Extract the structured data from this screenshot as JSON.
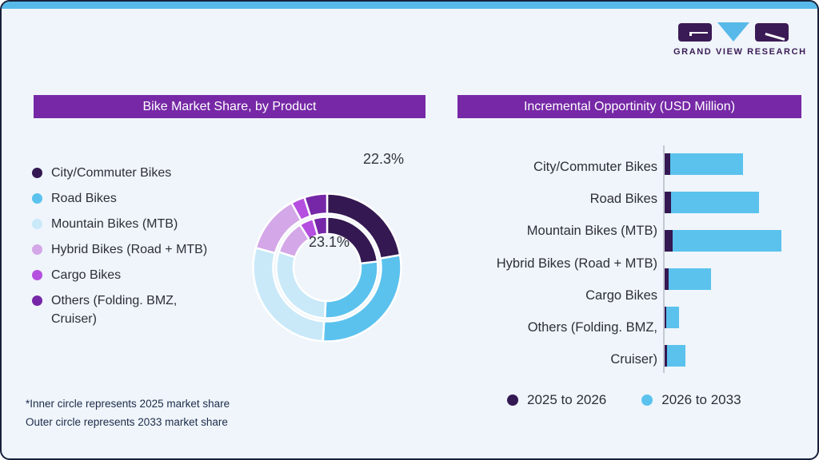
{
  "brand": {
    "wordmark": "GRAND VIEW RESEARCH"
  },
  "colors": {
    "accent_strip": "#57b9e9",
    "header_bar": "#7628a6",
    "card_bg": "#eff5fa",
    "card_border": "#17203a",
    "dark_purple": "#331852",
    "road_blue": "#5bc2ee",
    "light_blue": "#c9e9f9",
    "lavender": "#d4a7e8",
    "magenta": "#b44fe0",
    "others_purple": "#7627a8",
    "text": "#2e2e38",
    "footnote_text": "#1c2b4a",
    "axis_line": "#c3c8d2"
  },
  "left_panel": {
    "header": "Bike Market Share, by Product",
    "callout_outer": "22.3%",
    "callout_inner": "23.1%",
    "footnote1": "*Inner circle represents 2025 market share",
    "footnote2": "Outer circle represents 2033 market share"
  },
  "right_panel": {
    "header": "Incremental Opportinity (USD Million)",
    "legend": [
      {
        "label": "2025 to 2026",
        "color": "#331852"
      },
      {
        "label": "2026 to 2033",
        "color": "#5bc2ee"
      }
    ]
  },
  "chart_data": [
    {
      "type": "pie",
      "subtype": "double-ring donut",
      "title": "Bike Market Share, by Product",
      "categories": [
        "City/Commuter Bikes",
        "Road Bikes",
        "Mountain Bikes (MTB)",
        "Hybrid Bikes (Road + MTB)",
        "Cargo Bikes",
        "Others (Folding. BMZ, Cruiser)"
      ],
      "colors": [
        "#331852",
        "#5bc2ee",
        "#c9e9f9",
        "#d4a7e8",
        "#b44fe0",
        "#7627a8"
      ],
      "series": [
        {
          "name": "2025 market share (inner circle)",
          "values": [
            23.1,
            27.6,
            29.3,
            11.0,
            4.5,
            4.5
          ]
        },
        {
          "name": "2033 market share (outer circle)",
          "values": [
            22.3,
            28.6,
            28.4,
            12.7,
            3.0,
            5.0
          ]
        }
      ],
      "data_labels": [
        {
          "text": "22.3%",
          "ring": "outer",
          "category": "City/Commuter Bikes"
        },
        {
          "text": "23.1%",
          "ring": "inner",
          "category": "City/Commuter Bikes"
        }
      ],
      "legend_position": "left",
      "start_angle_deg": 0
    },
    {
      "type": "bar",
      "orientation": "horizontal",
      "title": "Incremental Opportinity (USD Million)",
      "categories": [
        "City/Commuter Bikes",
        "Road Bikes",
        "Mountain Bikes (MTB)",
        "Hybrid Bikes (Road + MTB)",
        "Cargo Bikes",
        "Others (Folding. BMZ, Cruiser)"
      ],
      "axis_label_lines": [
        "City/Commuter Bikes",
        "Road Bikes",
        "Mountain Bikes (MTB)",
        "Hybrid Bikes (Road + MTB)",
        "Cargo Bikes",
        "Others (Folding. BMZ,",
        "Cruiser)"
      ],
      "series": [
        {
          "name": "2025 to 2026",
          "color": "#331852",
          "values": [
            4.8,
            5.5,
            6.8,
            3.4,
            1.4,
            2.0
          ]
        },
        {
          "name": "2026 to 2033",
          "color": "#5bc2ee",
          "values": [
            62.2,
            75.5,
            93.2,
            36.6,
            10.6,
            16.0
          ]
        }
      ],
      "value_axis": {
        "range": [
          0,
          100
        ],
        "note": "relative units; longest stacked bar = 100; no numeric ticks shown",
        "grid": false
      },
      "legend_position": "bottom"
    }
  ]
}
